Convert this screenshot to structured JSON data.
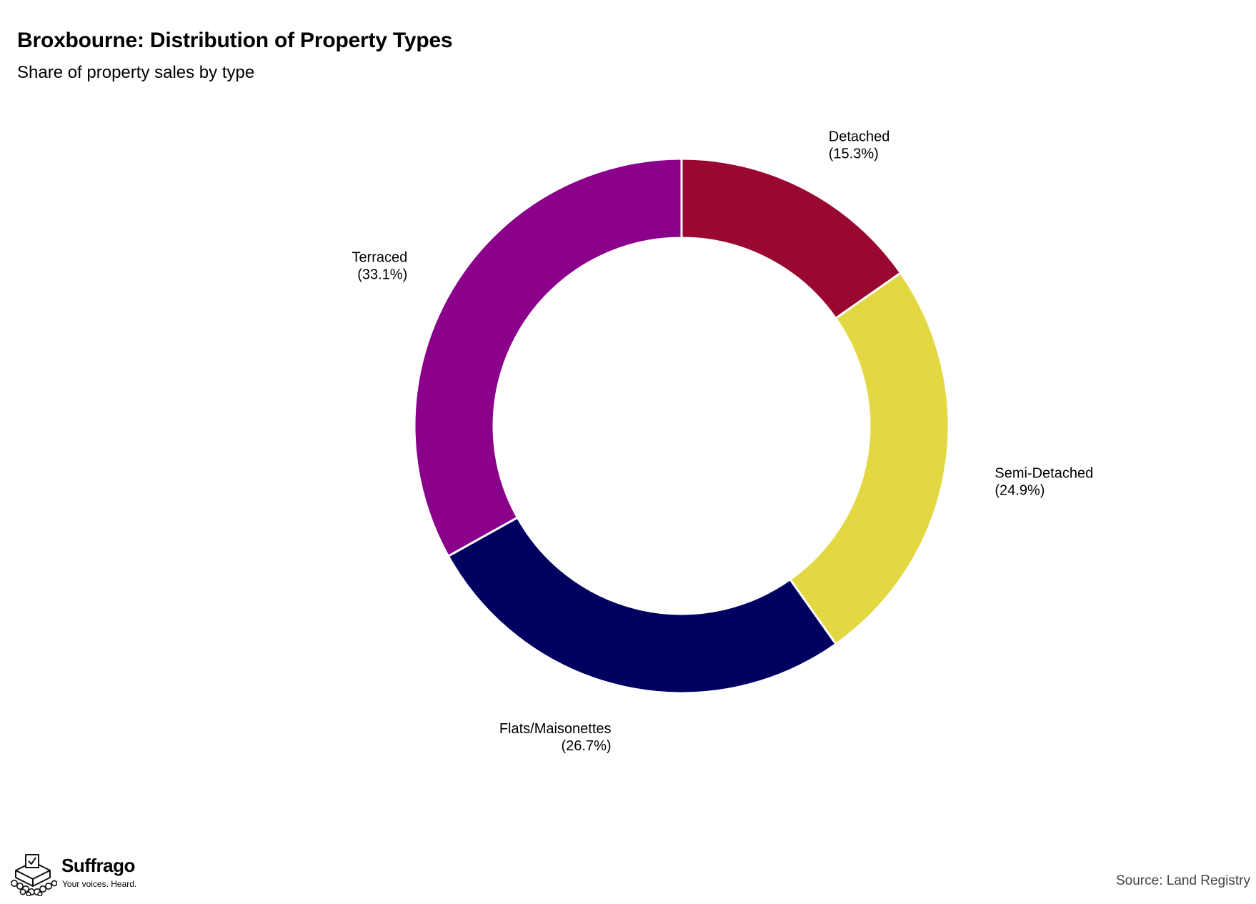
{
  "header": {
    "title": "Broxbourne: Distribution of Property Types",
    "subtitle": "Share of property sales by type"
  },
  "chart_data": {
    "type": "pie",
    "variant": "donut",
    "title": "Broxbourne: Distribution of Property Types",
    "subtitle": "Share of property sales by type",
    "categories": [
      "Detached",
      "Semi-Detached",
      "Flats/Maisonettes",
      "Terraced"
    ],
    "values": [
      15.3,
      24.9,
      26.7,
      33.1
    ],
    "labels": [
      "(15.3%)",
      "(24.9%)",
      "(26.7%)",
      "(33.1%)"
    ],
    "colors": [
      "#990830",
      "#E3D842",
      "#000060",
      "#8B008B"
    ],
    "start": "top",
    "direction": "clockwise",
    "legend": "none"
  },
  "footer": {
    "brand_name": "Suffrago",
    "brand_tagline": "Your voices. Heard.",
    "source": "Source: Land Registry"
  }
}
